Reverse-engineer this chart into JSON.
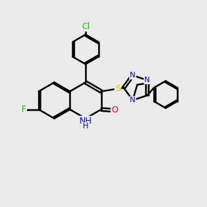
{
  "bg_color": "#ebebeb",
  "bond_color": "#000000",
  "bond_width": 1.8,
  "atom_colors": {
    "C": "#000000",
    "N": "#0000ff",
    "O": "#ff0000",
    "S": "#cccc00",
    "F": "#00cc00",
    "Cl": "#00cc00",
    "H": "#000000"
  },
  "font_size": 9,
  "fig_width": 3.0,
  "fig_height": 3.0
}
